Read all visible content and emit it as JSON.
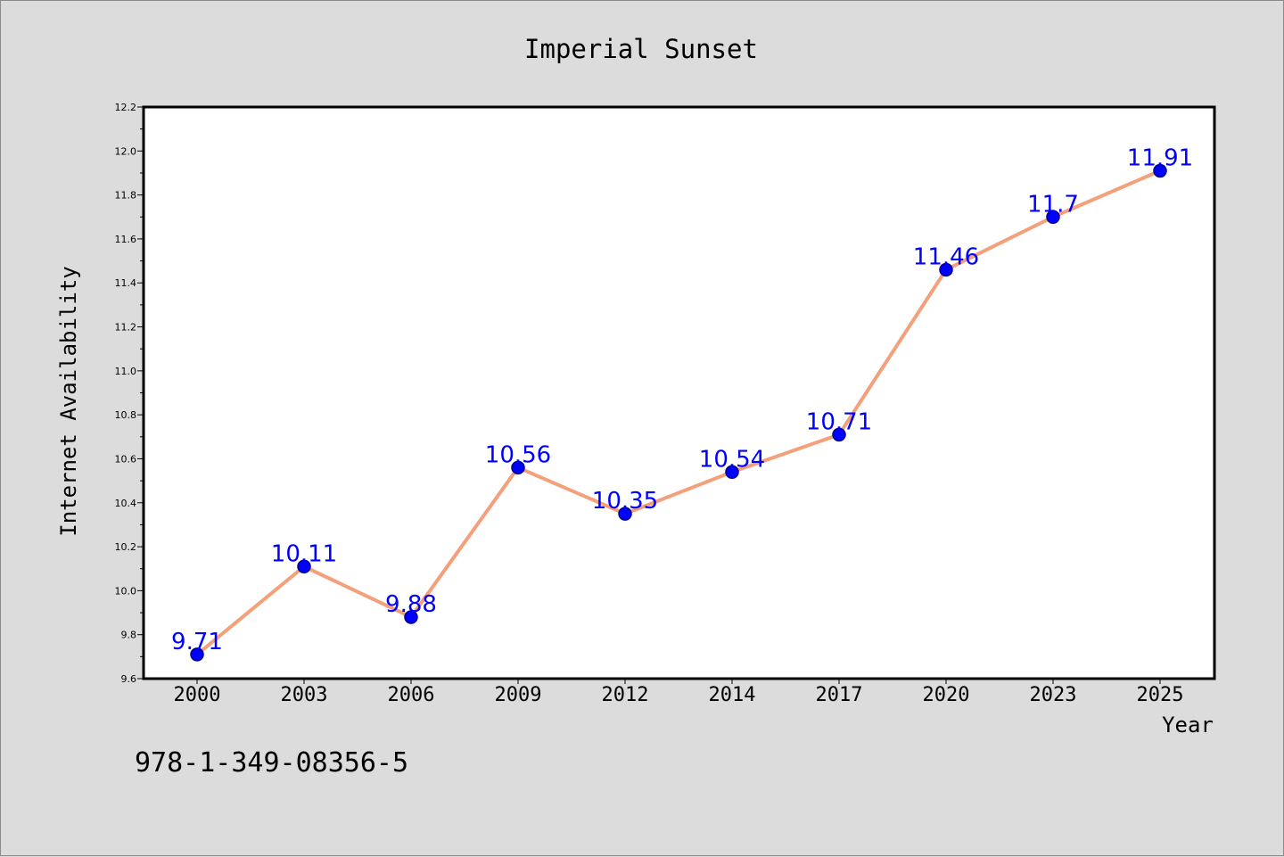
{
  "chart_data": {
    "type": "line",
    "title": "Imperial Sunset",
    "xlabel": "Year",
    "ylabel": "Internet Availability",
    "categories": [
      "2000",
      "2003",
      "2006",
      "2009",
      "2012",
      "2014",
      "2017",
      "2020",
      "2023",
      "2025"
    ],
    "series": [
      {
        "values": [
          9.71,
          10.11,
          9.88,
          10.56,
          10.35,
          10.54,
          10.71,
          11.46,
          11.7,
          11.91
        ]
      }
    ],
    "data_labels": [
      "9.71",
      "10.11",
      "9.88",
      "10.56",
      "10.35",
      "10.54",
      "10.71",
      "11.46",
      "11.7",
      "11.91"
    ],
    "ylim": [
      9.6,
      12.2
    ],
    "yticks": [
      "9.6",
      "9.8",
      "10.0",
      "10.2",
      "10.4",
      "10.6",
      "10.8",
      "11.0",
      "11.2",
      "11.4",
      "11.6",
      "11.8",
      "12.0",
      "12.2"
    ],
    "grid": false,
    "legend": "none",
    "colors": {
      "line": "#f4a07a",
      "marker": "#0000ff",
      "marker_edge": "#00008b",
      "data_label": "#0000ff",
      "background": "#dcdcdc",
      "plot_bg": "#ffffff"
    }
  },
  "footer": {
    "isbn": "978-1-349-08356-5"
  }
}
